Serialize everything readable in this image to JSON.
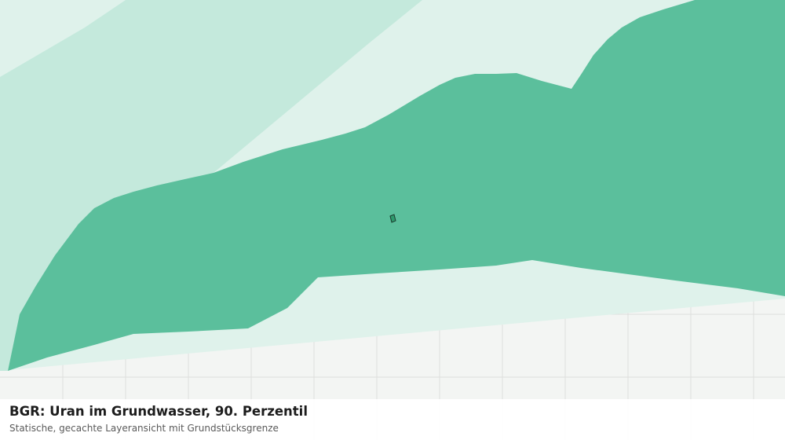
{
  "map": {
    "layers": [
      {
        "name": "uran-class-lowest",
        "color": "#dff2eb"
      },
      {
        "name": "uran-class-low",
        "color": "#c4e9dc"
      },
      {
        "name": "uran-class-mid",
        "color": "#5bbf9c"
      }
    ],
    "basemap": {
      "background": "#f3f5f3",
      "grid_color": "#dedfdd"
    },
    "parcel": {
      "fill": "#2e9a6d",
      "stroke": "#1a3a2c"
    }
  },
  "caption": {
    "title": "BGR: Uran im Grundwasser, 90. Perzentil",
    "subtitle": "Statische, gecachte Layeransicht mit Grundstücksgrenze"
  }
}
